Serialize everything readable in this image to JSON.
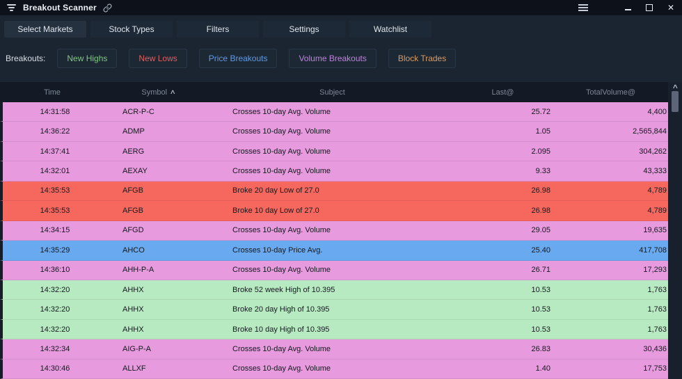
{
  "window": {
    "title": "Breakout Scanner",
    "close_glyph": "✕"
  },
  "toolbar": {
    "buttons": [
      "Select Markets",
      "Stock Types",
      "Filters",
      "Settings",
      "Watchlist"
    ]
  },
  "breakouts": {
    "label": "Breakouts:",
    "filters": [
      {
        "label": "New Highs",
        "color": "#7ec87f"
      },
      {
        "label": "New Lows",
        "color": "#e25d5d"
      },
      {
        "label": "Price Breakouts",
        "color": "#5f9be8"
      },
      {
        "label": "Volume Breakouts",
        "color": "#bd85d9"
      },
      {
        "label": "Block Trades",
        "color": "#d79d6a"
      }
    ]
  },
  "table": {
    "columns": [
      "Time",
      "Symbol",
      "Subject",
      "Last@",
      "TotalVolume@"
    ],
    "sort_column": "Symbol",
    "sort_direction": "asc",
    "sort_caret": "∧",
    "rows": [
      {
        "time": "14:31:58",
        "symbol": "ACR-P-C",
        "subject": "Crosses 10-day Avg. Volume",
        "last": "25.72",
        "volume": "4,400",
        "kind": "volume"
      },
      {
        "time": "14:36:22",
        "symbol": "ADMP",
        "subject": "Crosses 10-day Avg. Volume",
        "last": "1.05",
        "volume": "2,565,844",
        "kind": "volume"
      },
      {
        "time": "14:37:41",
        "symbol": "AERG",
        "subject": "Crosses 10-day Avg. Volume",
        "last": "2.095",
        "volume": "304,262",
        "kind": "volume"
      },
      {
        "time": "14:32:01",
        "symbol": "AEXAY",
        "subject": "Crosses 10-day Avg. Volume",
        "last": "9.33",
        "volume": "43,333",
        "kind": "volume"
      },
      {
        "time": "14:35:53",
        "symbol": "AFGB",
        "subject": "Broke 20 day Low of 27.0",
        "last": "26.98",
        "volume": "4,789",
        "kind": "low"
      },
      {
        "time": "14:35:53",
        "symbol": "AFGB",
        "subject": "Broke 10 day Low of 27.0",
        "last": "26.98",
        "volume": "4,789",
        "kind": "low"
      },
      {
        "time": "14:34:15",
        "symbol": "AFGD",
        "subject": "Crosses 10-day Avg. Volume",
        "last": "29.05",
        "volume": "19,635",
        "kind": "volume"
      },
      {
        "time": "14:35:29",
        "symbol": "AHCO",
        "subject": "Crosses 10-day Price Avg.",
        "last": "25.40",
        "volume": "417,708",
        "kind": "price"
      },
      {
        "time": "14:36:10",
        "symbol": "AHH-P-A",
        "subject": "Crosses 10-day Avg. Volume",
        "last": "26.71",
        "volume": "17,293",
        "kind": "volume"
      },
      {
        "time": "14:32:20",
        "symbol": "AHHX",
        "subject": "Broke 52 week High of 10.395",
        "last": "10.53",
        "volume": "1,763",
        "kind": "high"
      },
      {
        "time": "14:32:20",
        "symbol": "AHHX",
        "subject": "Broke 20 day High of 10.395",
        "last": "10.53",
        "volume": "1,763",
        "kind": "high"
      },
      {
        "time": "14:32:20",
        "symbol": "AHHX",
        "subject": "Broke 10 day High of 10.395",
        "last": "10.53",
        "volume": "1,763",
        "kind": "high"
      },
      {
        "time": "14:32:34",
        "symbol": "AIG-P-A",
        "subject": "Crosses 10-day Avg. Volume",
        "last": "26.83",
        "volume": "30,436",
        "kind": "volume"
      },
      {
        "time": "14:30:46",
        "symbol": "ALLXF",
        "subject": "Crosses 10-day Avg. Volume",
        "last": "1.40",
        "volume": "17,753",
        "kind": "volume"
      }
    ]
  },
  "colors": {
    "volume": "#e79ade",
    "low": "#f6675e",
    "price": "#68a9ef",
    "high": "#b7eac1",
    "row_text": "#15191e"
  },
  "scrollbar": {
    "up_glyph": "∧"
  }
}
